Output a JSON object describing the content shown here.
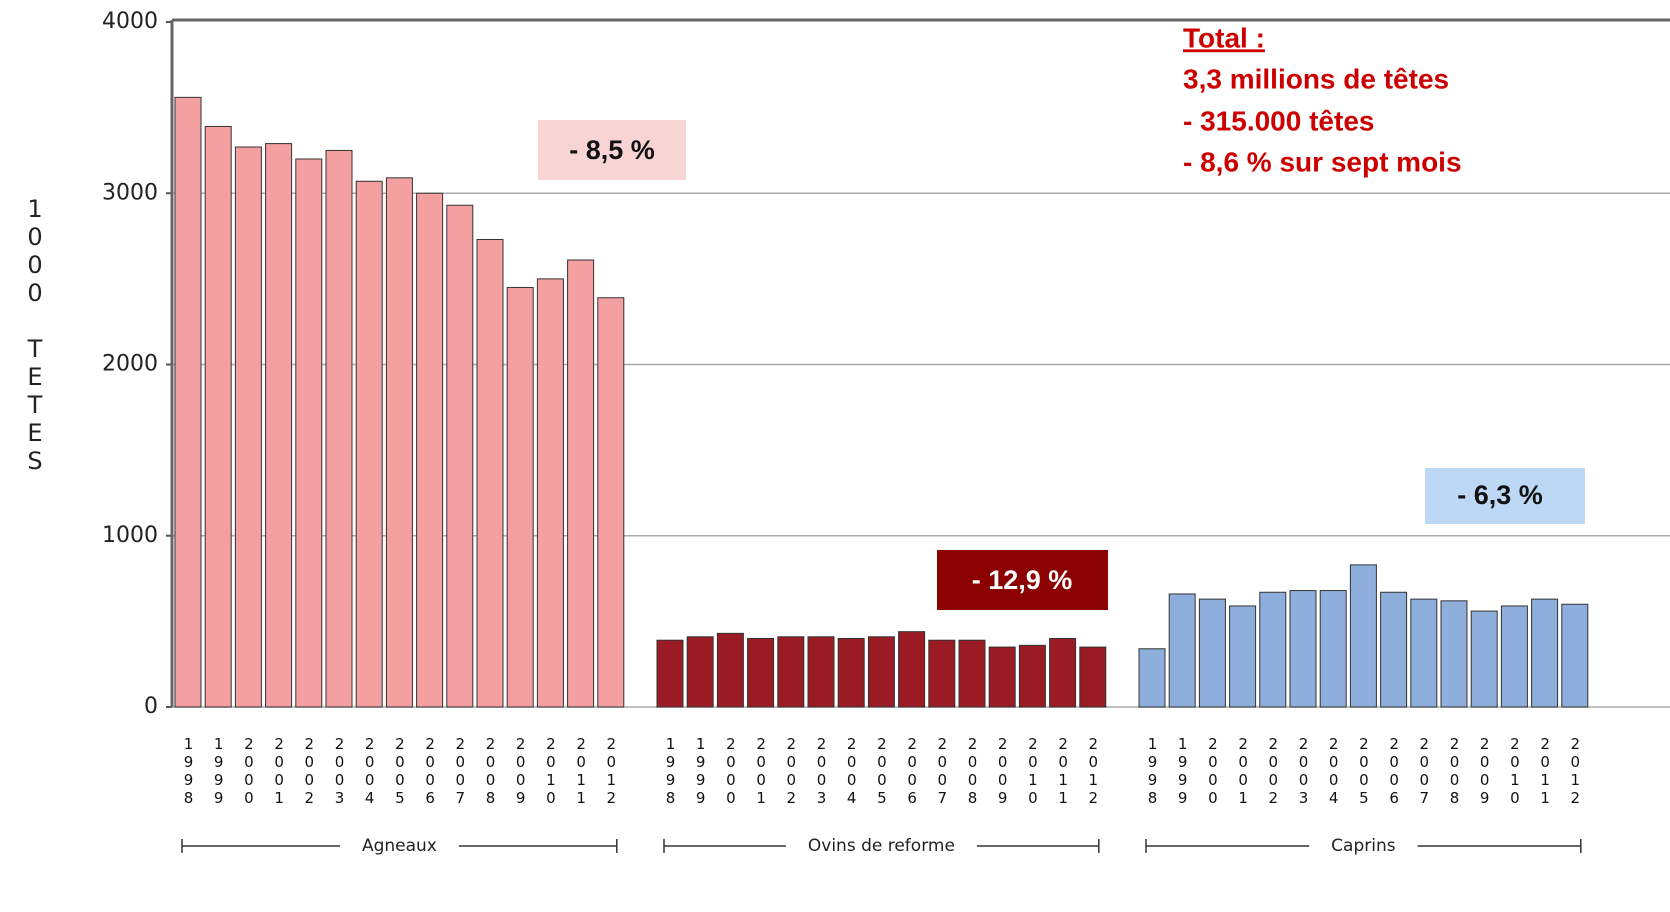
{
  "chart_data": {
    "type": "bar",
    "categories": [
      "1998",
      "1999",
      "2000",
      "2001",
      "2002",
      "2003",
      "2004",
      "2005",
      "2006",
      "2007",
      "2008",
      "2009",
      "2010",
      "2011",
      "2012"
    ],
    "series": [
      {
        "name": "Agneaux",
        "color": "#f4a0a0",
        "values": [
          3560,
          3390,
          3270,
          3290,
          3200,
          3250,
          3070,
          3090,
          3000,
          2930,
          2730,
          2450,
          2500,
          2610,
          2390
        ]
      },
      {
        "name": "Ovins de reforme",
        "color": "#9b1b25",
        "values": [
          390,
          410,
          430,
          400,
          410,
          410,
          400,
          410,
          440,
          390,
          390,
          350,
          360,
          400,
          350
        ]
      },
      {
        "name": "Caprins",
        "color": "#8eaedb",
        "values": [
          340,
          660,
          630,
          590,
          670,
          680,
          680,
          830,
          670,
          630,
          620,
          560,
          590,
          630,
          600
        ]
      }
    ],
    "y_label": "1000 TETES",
    "ylim": [
      0,
      4000
    ],
    "yticks": [
      0,
      1000,
      2000,
      3000,
      4000
    ],
    "grid": true,
    "annotations": {
      "agneaux": "- 8,5 %",
      "ovins": "- 12,9 %",
      "caprins": "- 6,3 %",
      "total_heading": "Total :",
      "total_lines": [
        "3,3 millions de têtes",
        "- 315.000 têtes",
        "- 8,6 % sur sept mois"
      ]
    }
  }
}
